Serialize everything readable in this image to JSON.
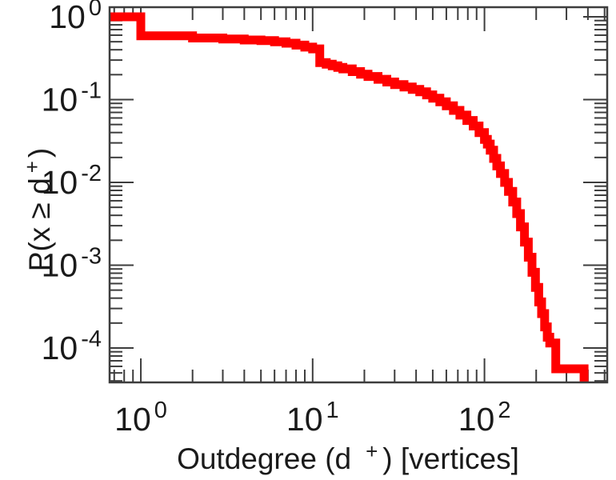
{
  "chart_data": {
    "type": "line",
    "style": "ccdf-staircase-log-log",
    "title": "",
    "xlabel": "Outdegree (d+) [vertices]",
    "xlabel_parts": [
      "Outdegree (d",
      "+",
      ") [vertices]"
    ],
    "ylabel": "P(x ≥ d+)",
    "ylabel_parts": [
      "P(x ≥ d",
      "+",
      ")"
    ],
    "xscale": "log",
    "yscale": "log",
    "xlim": [
      0.658,
      518
    ],
    "ylim": [
      3.84e-05,
      1.306
    ],
    "grid": false,
    "legend": "none",
    "x_major_ticks": [
      {
        "value": 1,
        "base": "10",
        "exp": "0"
      },
      {
        "value": 10,
        "base": "10",
        "exp": "1"
      },
      {
        "value": 100,
        "base": "10",
        "exp": "2"
      }
    ],
    "y_major_ticks": [
      {
        "value": 1,
        "base": "10",
        "exp": "0"
      },
      {
        "value": 0.1,
        "base": "10",
        "exp": "-1"
      },
      {
        "value": 0.01,
        "base": "10",
        "exp": "-2"
      },
      {
        "value": 0.001,
        "base": "10",
        "exp": "-3"
      },
      {
        "value": 0.0001,
        "base": "10",
        "exp": "-4"
      }
    ],
    "minor_ticks": "log mantissas 2-9 drawn inward on all four sides",
    "series": [
      {
        "name": "outdegree-ccdf",
        "color": "#ff0000",
        "line_width": 11,
        "points": [
          [
            0.66,
            1.0
          ],
          [
            1,
            0.59
          ],
          [
            2,
            0.555
          ],
          [
            3,
            0.54
          ],
          [
            4,
            0.525
          ],
          [
            5,
            0.515
          ],
          [
            6,
            0.5
          ],
          [
            7,
            0.48
          ],
          [
            8,
            0.455
          ],
          [
            9,
            0.43
          ],
          [
            10,
            0.41
          ],
          [
            11,
            0.28
          ],
          [
            12,
            0.268
          ],
          [
            13,
            0.256
          ],
          [
            14,
            0.245
          ],
          [
            15,
            0.235
          ],
          [
            17,
            0.218
          ],
          [
            19,
            0.203
          ],
          [
            21,
            0.19
          ],
          [
            24,
            0.176
          ],
          [
            27,
            0.163
          ],
          [
            30,
            0.152
          ],
          [
            34,
            0.142
          ],
          [
            38,
            0.133
          ],
          [
            42,
            0.124
          ],
          [
            46,
            0.114
          ],
          [
            50,
            0.104
          ],
          [
            55,
            0.094
          ],
          [
            60,
            0.084
          ],
          [
            66,
            0.074
          ],
          [
            72,
            0.065
          ],
          [
            79,
            0.056
          ],
          [
            86,
            0.048
          ],
          [
            93,
            0.04
          ],
          [
            100,
            0.033
          ],
          [
            104,
            0.029
          ],
          [
            108,
            0.0245
          ],
          [
            113,
            0.0195
          ],
          [
            118,
            0.0158
          ],
          [
            124,
            0.0128
          ],
          [
            131,
            0.01
          ],
          [
            138,
            0.0078
          ],
          [
            146,
            0.0058
          ],
          [
            154,
            0.0042
          ],
          [
            162,
            0.0029
          ],
          [
            171,
            0.0019
          ],
          [
            180,
            0.00125
          ],
          [
            189,
            0.00082
          ],
          [
            198,
            0.00054
          ],
          [
            207,
            0.00036
          ],
          [
            215,
            0.00026
          ],
          [
            224,
            0.00018
          ],
          [
            232,
            0.000135
          ],
          [
            240,
            0.000115
          ],
          [
            260,
            5.6e-05
          ],
          [
            380,
            2e-05
          ]
        ]
      }
    ]
  },
  "colors": {
    "background": "#ffffff",
    "axis": "#3d3d3d",
    "text": "#1a1a1a",
    "curve": "#ff0000"
  }
}
